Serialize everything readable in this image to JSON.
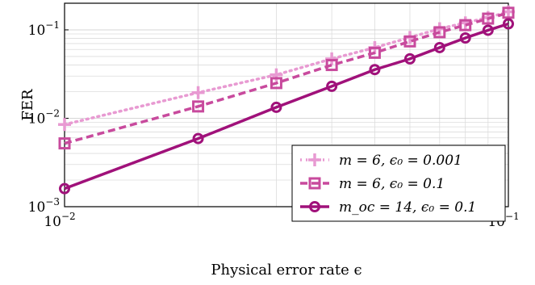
{
  "chart_data": {
    "type": "line",
    "xlabel": "Physical error rate ϵ",
    "ylabel": "FER",
    "xscale": "log",
    "yscale": "log",
    "xlim": [
      0.01,
      0.1
    ],
    "ylim": [
      0.001,
      0.2
    ],
    "grid": true,
    "legend_position": "bottom-right",
    "x_ticks": [
      {
        "value": 0.01,
        "base": "10",
        "exp": "−2"
      },
      {
        "value": 0.1,
        "base": "10",
        "exp": "−1"
      }
    ],
    "y_ticks": [
      {
        "value": 0.001,
        "base": "10",
        "exp": "−3"
      },
      {
        "value": 0.01,
        "base": "10",
        "exp": "−2"
      },
      {
        "value": 0.1,
        "base": "10",
        "exp": "−1"
      }
    ],
    "series": [
      {
        "name": "m = 6, ϵ₀ = 0.001",
        "color": "#e89ad2",
        "line_style": "dotted",
        "marker": "plus",
        "x": [
          0.01,
          0.02,
          0.03,
          0.04,
          0.05,
          0.06,
          0.07,
          0.08,
          0.09,
          0.1
        ],
        "y": [
          0.0085,
          0.0195,
          0.031,
          0.047,
          0.063,
          0.082,
          0.103,
          0.12,
          0.138,
          0.16
        ]
      },
      {
        "name": "m = 6, ϵ₀ = 0.1",
        "color": "#c84a9d",
        "line_style": "dashed",
        "marker": "square",
        "x": [
          0.01,
          0.02,
          0.03,
          0.04,
          0.05,
          0.06,
          0.07,
          0.08,
          0.09,
          0.1
        ],
        "y": [
          0.0052,
          0.0136,
          0.025,
          0.04,
          0.055,
          0.074,
          0.094,
          0.113,
          0.134,
          0.156
        ]
      },
      {
        "name": "m_oc = 14, ϵ₀ = 0.1",
        "color": "#a0117a",
        "line_style": "solid",
        "marker": "circle",
        "x": [
          0.01,
          0.02,
          0.03,
          0.04,
          0.05,
          0.06,
          0.07,
          0.08,
          0.09,
          0.1
        ],
        "y": [
          0.0016,
          0.0059,
          0.0133,
          0.023,
          0.0355,
          0.047,
          0.063,
          0.081,
          0.099,
          0.117
        ]
      }
    ]
  }
}
